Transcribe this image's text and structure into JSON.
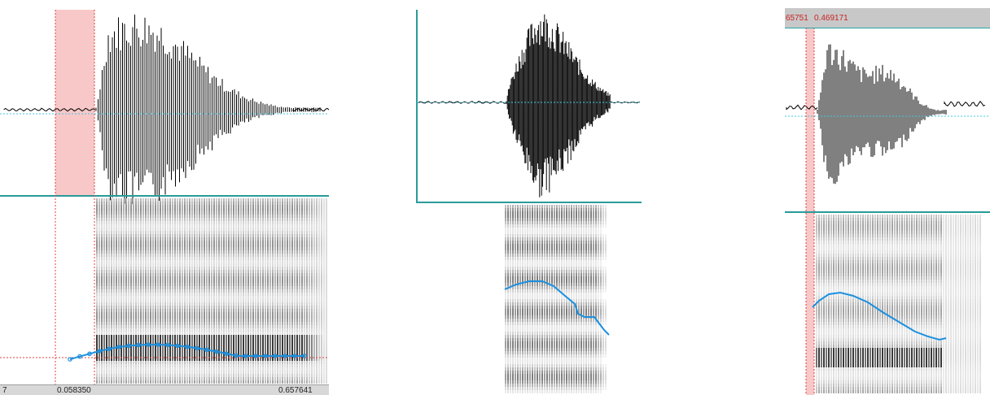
{
  "colors": {
    "selection_fill": "#f8c8c8",
    "cursor_line": "#e04040",
    "divider": "#2a9a9a",
    "pitch_curve": "#1a90e0",
    "zero_line": "#40c8e0",
    "waveform": "#000000"
  },
  "panels": [
    {
      "id": "left",
      "time_labels": {
        "left": "7",
        "selection_start": "0.058350",
        "end": "0.657641"
      }
    },
    {
      "id": "middle"
    },
    {
      "id": "right",
      "time_labels": {
        "left": "65751",
        "right": "0.469171"
      }
    }
  ]
}
